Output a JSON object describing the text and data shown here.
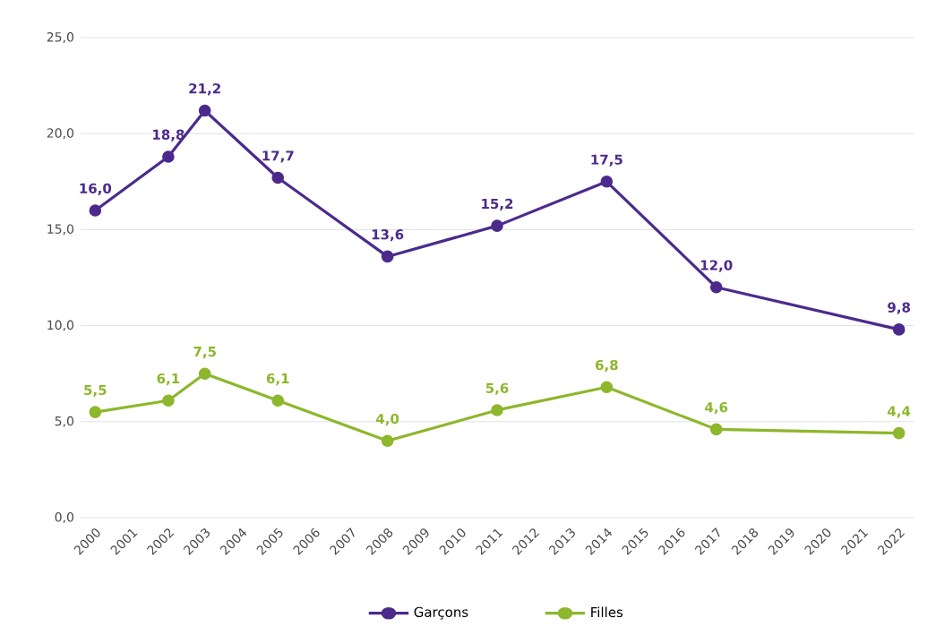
{
  "chart_data": {
    "type": "line",
    "x": [
      2000,
      2002,
      2003,
      2005,
      2008,
      2011,
      2014,
      2017,
      2022
    ],
    "xlim": [
      1999.6,
      2022.4
    ],
    "xticks": [
      2000,
      2001,
      2002,
      2003,
      2004,
      2005,
      2006,
      2007,
      2008,
      2009,
      2010,
      2011,
      2012,
      2013,
      2014,
      2015,
      2016,
      2017,
      2018,
      2019,
      2020,
      2021,
      2022
    ],
    "ylim": [
      0,
      25
    ],
    "yticks": [
      {
        "value": 0,
        "label": "0,0"
      },
      {
        "value": 5,
        "label": "5,0"
      },
      {
        "value": 10,
        "label": "10,0"
      },
      {
        "value": 15,
        "label": "15,0"
      },
      {
        "value": 20,
        "label": "20,0"
      },
      {
        "value": 25,
        "label": "25,0"
      }
    ],
    "series": [
      {
        "name": "Garçons",
        "color": "#4b2a8c",
        "values": [
          16.0,
          18.8,
          21.2,
          17.7,
          13.6,
          15.2,
          17.5,
          12.0,
          9.8
        ],
        "value_labels": [
          "16,0",
          "18,8",
          "21,2",
          "17,7",
          "13,6",
          "15,2",
          "17,5",
          "12,0",
          "9,8"
        ]
      },
      {
        "name": "Filles",
        "color": "#8db72c",
        "values": [
          5.5,
          6.1,
          7.5,
          6.1,
          4.0,
          5.6,
          6.8,
          4.6,
          4.4
        ],
        "value_labels": [
          "5,5",
          "6,1",
          "7,5",
          "6,1",
          "4,0",
          "5,6",
          "6,8",
          "4,6",
          "4,4"
        ]
      }
    ],
    "grid": "y",
    "legend": "bottom",
    "marker": "circle",
    "line_style": "solid"
  }
}
